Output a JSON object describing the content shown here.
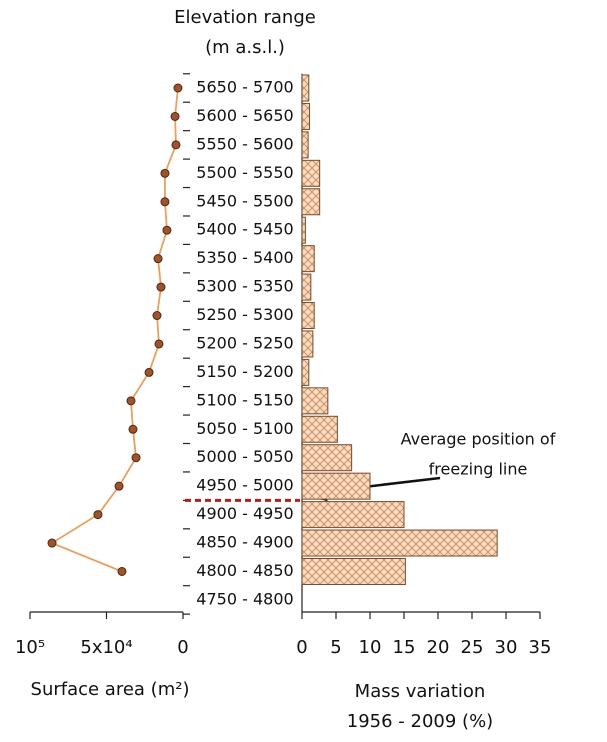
{
  "chart_data": [
    {
      "type": "line",
      "x_label": "Surface area (m²)",
      "values": [
        3300,
        5200,
        4600,
        11800,
        11800,
        10500,
        16300,
        14400,
        17000,
        15700,
        22200,
        34000,
        32700,
        30700,
        41800,
        55600,
        85600,
        39900,
        null
      ],
      "color": "#e8a060",
      "marker_color": "#a0522d",
      "xlim": [
        100000,
        0
      ],
      "xticks": [
        {
          "value": 100000,
          "label": "10⁵"
        },
        {
          "value": 50000,
          "label": "5x10⁴"
        },
        0
      ]
    },
    {
      "type": "bar",
      "y_label": [
        "Elevation range",
        "(m a.s.l.)"
      ],
      "x_label": [
        "Mass variation",
        "1956 - 2009 (%)"
      ],
      "categories": [
        "5650 - 5700",
        "5600 - 5650",
        "5550 - 5600",
        "5500 - 5550",
        "5450 - 5500",
        "5400 - 5450",
        "5350 - 5400",
        "5300 - 5350",
        "5250 - 5300",
        "5200 - 5250",
        "5150 - 5200",
        "5100 - 5150",
        "5050 - 5100",
        "5000 - 5050",
        "4950 - 5000",
        "4900 - 4950",
        "4850 - 4900",
        "4800 - 4850",
        "4750 - 4800"
      ],
      "values": [
        1.0,
        1.1,
        0.9,
        2.6,
        2.6,
        0.5,
        1.8,
        1.3,
        1.8,
        1.6,
        1.0,
        3.8,
        5.2,
        7.3,
        10,
        15,
        28.7,
        15.2,
        null
      ],
      "color": "#f5dcc0",
      "hatch_color": "#c8855a",
      "xlim": [
        0,
        35
      ],
      "xticks": [
        0,
        5,
        10,
        15,
        20,
        25,
        30,
        35
      ],
      "annotation": [
        "Average position of",
        "freezing line"
      ]
    }
  ]
}
